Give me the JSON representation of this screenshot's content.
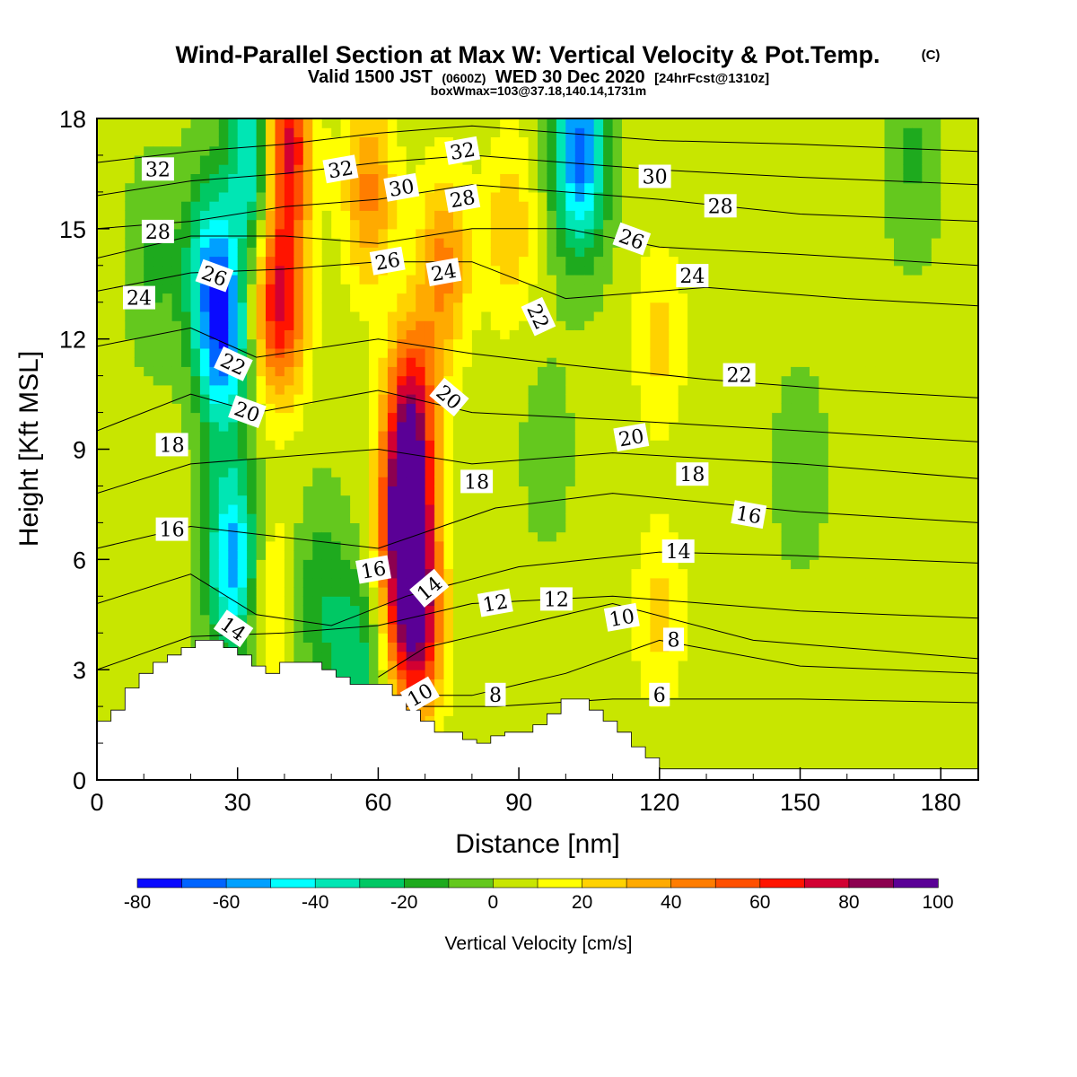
{
  "header": {
    "title": "Wind-Parallel Section at Max W: Vertical Velocity & Pot.Temp.",
    "copyright": "(C)",
    "valid_main": "Valid 1500 JST",
    "valid_zulu": "(0600Z)",
    "valid_date": "WED 30 Dec 2020",
    "forecast": "[24hrFcst@1310z]",
    "box_info": "boxWmax=103@37.18,140.14,1731m"
  },
  "chart_data": {
    "type": "contour",
    "xlabel": "Distance [nm]",
    "ylabel": "Height [Kft MSL]",
    "xlim": [
      0,
      188
    ],
    "ylim": [
      0,
      18
    ],
    "x_ticks": [
      0,
      30,
      60,
      90,
      120,
      150,
      180
    ],
    "y_ticks": [
      0,
      3,
      6,
      9,
      12,
      15,
      18
    ],
    "colorbar": {
      "label": "Vertical Velocity [cm/s]",
      "ticks": [
        -80,
        -60,
        -40,
        -20,
        0,
        20,
        40,
        60,
        80,
        100
      ],
      "bins": [
        -80,
        -70,
        -60,
        -50,
        -40,
        -30,
        -20,
        -10,
        0,
        10,
        20,
        30,
        40,
        50,
        60,
        70,
        80,
        90,
        100
      ],
      "colors": [
        "#0a0aff",
        "#0064ff",
        "#00a0ff",
        "#00ffff",
        "#00e6b4",
        "#00c864",
        "#1eaa1e",
        "#64c81e",
        "#c8e600",
        "#ffff00",
        "#ffd200",
        "#ffaa00",
        "#ff7d00",
        "#ff5000",
        "#ff1400",
        "#d20032",
        "#8c0050",
        "#5a0096"
      ]
    },
    "terrain": {
      "x": [
        0,
        3,
        6,
        9,
        12,
        15,
        18,
        21,
        24,
        27,
        30,
        33,
        36,
        39,
        42,
        45,
        48,
        51,
        54,
        57,
        60,
        63,
        66,
        69,
        72,
        75,
        78,
        81,
        84,
        87,
        90,
        93,
        96,
        99,
        102,
        105,
        108,
        111,
        114,
        117,
        120,
        123,
        126,
        130,
        140,
        150,
        160,
        170,
        188
      ],
      "height_kft": [
        1.6,
        1.9,
        2.5,
        2.9,
        3.2,
        3.4,
        3.6,
        3.8,
        3.8,
        3.6,
        3.4,
        3.1,
        2.9,
        3.2,
        3.2,
        3.2,
        3.0,
        2.8,
        2.6,
        2.6,
        2.6,
        2.3,
        1.9,
        1.6,
        1.3,
        1.3,
        1.1,
        1.0,
        1.2,
        1.3,
        1.3,
        1.5,
        1.8,
        2.2,
        2.2,
        1.9,
        1.6,
        1.3,
        0.9,
        0.6,
        0.3,
        0.3,
        0.3,
        0.3,
        0.3,
        0.3,
        0.3,
        0.3,
        0.3
      ]
    },
    "wind_w_cells": [
      {
        "x": 27,
        "y": 12,
        "w": -60
      },
      {
        "x": 29,
        "y": 6,
        "w": -60
      },
      {
        "x": 34,
        "y": 17,
        "w": -60
      },
      {
        "x": 24,
        "y": 14,
        "w": -40
      },
      {
        "x": 37,
        "y": 5,
        "w": 20
      },
      {
        "x": 39,
        "y": 13,
        "w": 70
      },
      {
        "x": 40,
        "y": 17.4,
        "w": 80
      },
      {
        "x": 47,
        "y": 5,
        "w": -20
      },
      {
        "x": 55,
        "y": 3.3,
        "w": -30
      },
      {
        "x": 58,
        "y": 16,
        "w": 40
      },
      {
        "x": 66,
        "y": 7,
        "w": 95
      },
      {
        "x": 68,
        "y": 4.2,
        "w": 80
      },
      {
        "x": 67,
        "y": 10,
        "w": 65
      },
      {
        "x": 74,
        "y": 14,
        "w": 40
      },
      {
        "x": 88,
        "y": 15,
        "w": 25
      },
      {
        "x": 103,
        "y": 16.5,
        "w": -20
      },
      {
        "x": 103,
        "y": 17.3,
        "w": -50
      },
      {
        "x": 120,
        "y": 4.5,
        "w": 20
      },
      {
        "x": 120,
        "y": 12,
        "w": 20
      },
      {
        "x": 150,
        "y": 8.5,
        "w": -10
      },
      {
        "x": 174,
        "y": 17,
        "w": -15
      },
      {
        "x": 8,
        "y": 8,
        "w": 5
      },
      {
        "x": 12,
        "y": 14,
        "w": -15
      },
      {
        "x": 96,
        "y": 9,
        "w": -8
      }
    ],
    "theta_contours": [
      {
        "label": "6",
        "x": [
          40,
          62,
          85,
          110,
          150,
          188
        ],
        "y": [
          1.8,
          2.0,
          2.0,
          2.2,
          2.2,
          2.1
        ]
      },
      {
        "label": "8",
        "x": [
          60,
          80,
          100,
          120,
          150,
          188
        ],
        "y": [
          2.3,
          2.3,
          2.9,
          3.8,
          3.1,
          2.9
        ]
      },
      {
        "label": "10",
        "x": [
          60,
          70,
          90,
          110,
          140,
          188
        ],
        "y": [
          2.8,
          3.6,
          4.2,
          4.8,
          3.8,
          3.3
        ]
      },
      {
        "label": "12",
        "x": [
          0,
          20,
          40,
          60,
          80,
          110,
          150,
          188
        ],
        "y": [
          3.0,
          3.9,
          4.0,
          4.2,
          4.8,
          5.0,
          4.6,
          4.4
        ]
      },
      {
        "label": "14",
        "x": [
          0,
          20,
          34,
          50,
          66,
          90,
          120,
          150,
          188
        ],
        "y": [
          4.8,
          5.6,
          4.5,
          4.2,
          5.0,
          5.8,
          6.2,
          6.1,
          5.9
        ]
      },
      {
        "label": "16",
        "x": [
          0,
          20,
          40,
          60,
          85,
          110,
          150,
          188
        ],
        "y": [
          6.3,
          6.9,
          6.6,
          6.3,
          7.4,
          7.8,
          7.3,
          7.0
        ]
      },
      {
        "label": "18",
        "x": [
          0,
          20,
          40,
          60,
          80,
          110,
          150,
          188
        ],
        "y": [
          7.8,
          8.6,
          8.8,
          9.0,
          8.6,
          8.9,
          8.6,
          8.2
        ]
      },
      {
        "label": "20",
        "x": [
          0,
          20,
          34,
          60,
          80,
          110,
          150,
          188
        ],
        "y": [
          9.5,
          10.5,
          10.0,
          10.6,
          10.0,
          9.8,
          9.5,
          9.2
        ]
      },
      {
        "label": "22",
        "x": [
          0,
          20,
          34,
          60,
          80,
          100,
          130,
          160,
          188
        ],
        "y": [
          11.8,
          12.3,
          11.5,
          12.0,
          11.6,
          11.3,
          10.9,
          10.6,
          10.4
        ]
      },
      {
        "label": "24",
        "x": [
          0,
          20,
          40,
          60,
          80,
          100,
          130,
          160,
          188
        ],
        "y": [
          13.3,
          13.8,
          13.9,
          14.1,
          14.1,
          13.1,
          13.4,
          13.1,
          12.9
        ]
      },
      {
        "label": "26",
        "x": [
          0,
          20,
          40,
          60,
          80,
          100,
          120,
          150,
          188
        ],
        "y": [
          14.2,
          14.8,
          14.8,
          14.6,
          15.0,
          15.0,
          14.5,
          14.3,
          14.0
        ]
      },
      {
        "label": "28",
        "x": [
          0,
          20,
          40,
          60,
          80,
          100,
          120,
          150,
          188
        ],
        "y": [
          15.0,
          15.2,
          15.6,
          15.8,
          16.2,
          16.0,
          15.8,
          15.4,
          15.2
        ]
      },
      {
        "label": "30",
        "x": [
          0,
          20,
          40,
          60,
          80,
          100,
          120,
          150,
          188
        ],
        "y": [
          15.9,
          16.3,
          16.5,
          16.8,
          17.0,
          16.8,
          16.6,
          16.4,
          16.2
        ]
      },
      {
        "label": "32",
        "x": [
          0,
          20,
          40,
          60,
          80,
          100,
          120,
          150,
          188
        ],
        "y": [
          16.8,
          17.1,
          17.3,
          17.6,
          17.8,
          17.6,
          17.4,
          17.3,
          17.1
        ]
      }
    ],
    "contour_labels": [
      {
        "text": "32",
        "x": 13,
        "y": 16.6,
        "angle": 0
      },
      {
        "text": "28",
        "x": 13,
        "y": 14.9,
        "angle": 0
      },
      {
        "text": "26",
        "x": 25,
        "y": 13.7,
        "angle": 20
      },
      {
        "text": "24",
        "x": 9,
        "y": 13.1,
        "angle": 0
      },
      {
        "text": "22",
        "x": 29,
        "y": 11.3,
        "angle": 25
      },
      {
        "text": "20",
        "x": 32,
        "y": 10.0,
        "angle": 20
      },
      {
        "text": "18",
        "x": 16,
        "y": 9.1,
        "angle": 0
      },
      {
        "text": "16",
        "x": 16,
        "y": 6.8,
        "angle": 0
      },
      {
        "text": "14",
        "x": 29,
        "y": 4.1,
        "angle": 35
      },
      {
        "text": "32",
        "x": 52,
        "y": 16.6,
        "angle": -10
      },
      {
        "text": "30",
        "x": 65,
        "y": 16.1,
        "angle": -10
      },
      {
        "text": "32",
        "x": 78,
        "y": 17.1,
        "angle": -10
      },
      {
        "text": "28",
        "x": 78,
        "y": 15.8,
        "angle": -10
      },
      {
        "text": "26",
        "x": 62,
        "y": 14.1,
        "angle": -10
      },
      {
        "text": "24",
        "x": 74,
        "y": 13.8,
        "angle": -10
      },
      {
        "text": "22",
        "x": 94,
        "y": 12.6,
        "angle": 65
      },
      {
        "text": "20",
        "x": 75,
        "y": 10.4,
        "angle": 40
      },
      {
        "text": "18",
        "x": 81,
        "y": 8.1,
        "angle": 0
      },
      {
        "text": "16",
        "x": 59,
        "y": 5.7,
        "angle": -10
      },
      {
        "text": "14",
        "x": 71,
        "y": 5.2,
        "angle": -40
      },
      {
        "text": "12",
        "x": 85,
        "y": 4.8,
        "angle": -10
      },
      {
        "text": "12",
        "x": 98,
        "y": 4.9,
        "angle": 0
      },
      {
        "text": "10",
        "x": 69,
        "y": 2.3,
        "angle": -30
      },
      {
        "text": "8",
        "x": 85,
        "y": 2.3,
        "angle": 0
      },
      {
        "text": "30",
        "x": 119,
        "y": 16.4,
        "angle": 0
      },
      {
        "text": "28",
        "x": 133,
        "y": 15.6,
        "angle": 0
      },
      {
        "text": "26",
        "x": 114,
        "y": 14.7,
        "angle": 20
      },
      {
        "text": "24",
        "x": 127,
        "y": 13.7,
        "angle": 0
      },
      {
        "text": "22",
        "x": 137,
        "y": 11.0,
        "angle": 0
      },
      {
        "text": "20",
        "x": 114,
        "y": 9.3,
        "angle": -10
      },
      {
        "text": "18",
        "x": 127,
        "y": 8.3,
        "angle": 0
      },
      {
        "text": "16",
        "x": 139,
        "y": 7.2,
        "angle": 10
      },
      {
        "text": "14",
        "x": 124,
        "y": 6.2,
        "angle": 0
      },
      {
        "text": "10",
        "x": 112,
        "y": 4.4,
        "angle": -10
      },
      {
        "text": "8",
        "x": 123,
        "y": 3.8,
        "angle": 0
      },
      {
        "text": "6",
        "x": 120,
        "y": 2.3,
        "angle": 0
      }
    ]
  }
}
